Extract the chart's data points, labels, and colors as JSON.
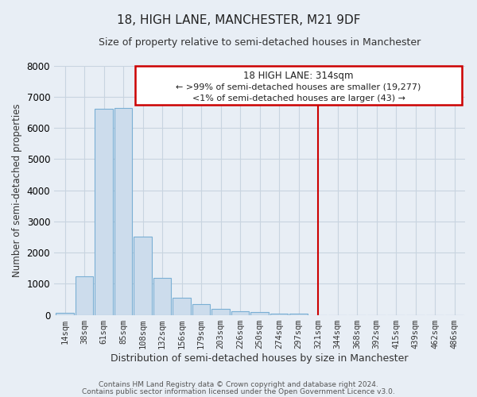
{
  "title": "18, HIGH LANE, MANCHESTER, M21 9DF",
  "subtitle": "Size of property relative to semi-detached houses in Manchester",
  "xlabel": "Distribution of semi-detached houses by size in Manchester",
  "ylabel": "Number of semi-detached properties",
  "bin_labels": [
    "14sqm",
    "38sqm",
    "61sqm",
    "85sqm",
    "108sqm",
    "132sqm",
    "156sqm",
    "179sqm",
    "203sqm",
    "226sqm",
    "250sqm",
    "274sqm",
    "297sqm",
    "321sqm",
    "344sqm",
    "368sqm",
    "392sqm",
    "415sqm",
    "439sqm",
    "462sqm",
    "486sqm"
  ],
  "bar_heights": [
    60,
    1250,
    6600,
    6650,
    2500,
    1190,
    550,
    340,
    200,
    120,
    90,
    50,
    40,
    0,
    0,
    0,
    0,
    0,
    0,
    0,
    0
  ],
  "bar_color": "#ccdcec",
  "bar_edge_color": "#7aafd4",
  "grid_color": "#c8d4e0",
  "bg_color": "#e8eef5",
  "plot_bg_color": "#e8eef5",
  "vline_x_index": 13,
  "vline_color": "#cc0000",
  "box_text_line1": "18 HIGH LANE: 314sqm",
  "box_text_line2": "← >99% of semi-detached houses are smaller (19,277)",
  "box_text_line3": "<1% of semi-detached houses are larger (43) →",
  "box_color": "#cc0000",
  "ylim": [
    0,
    8000
  ],
  "title_fontsize": 11,
  "subtitle_fontsize": 9,
  "footnote1": "Contains HM Land Registry data © Crown copyright and database right 2024.",
  "footnote2": "Contains public sector information licensed under the Open Government Licence v3.0."
}
